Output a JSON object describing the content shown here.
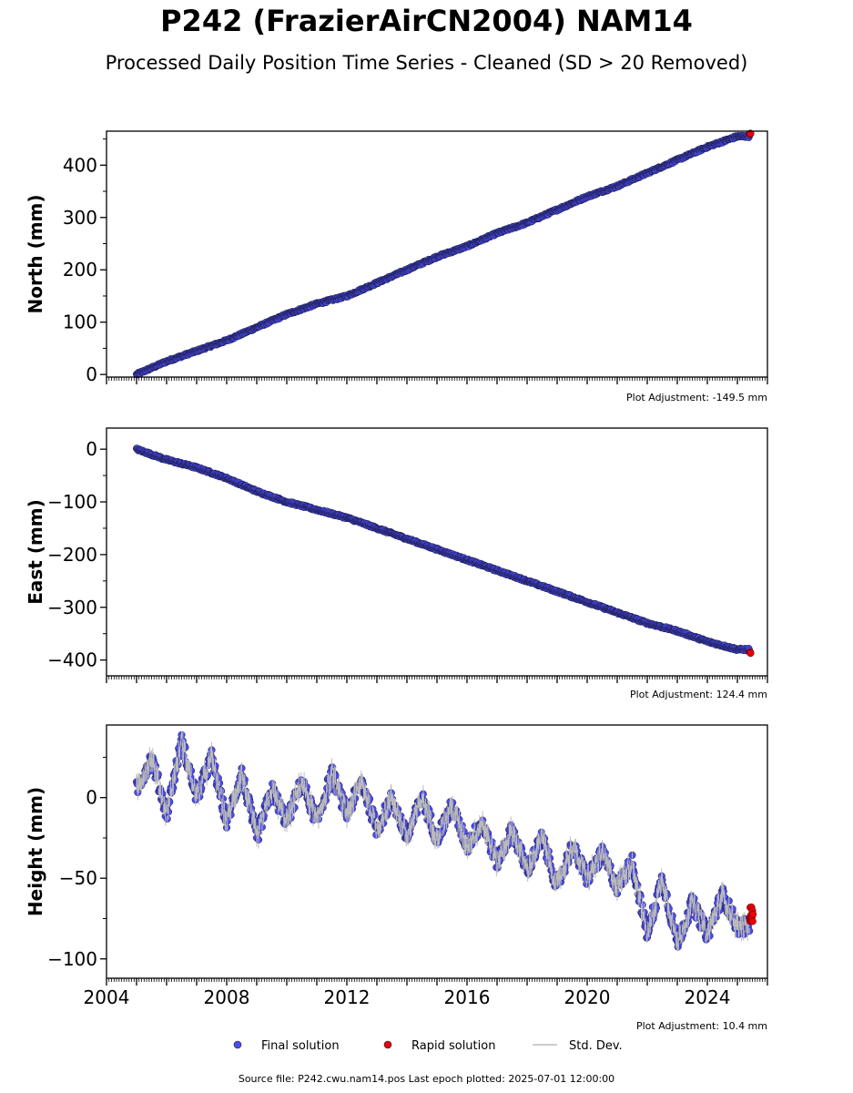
{
  "title": "P242 (FrazierAirCN2004) NAM14",
  "subtitle": "Processed Daily Position Time Series - Cleaned (SD > 20 Removed)",
  "legend": {
    "final": "Final solution",
    "rapid": "Rapid solution",
    "sd": "Std. Dev."
  },
  "source": "Source file: P242.cwu.nam14.pos  Last epoch plotted: 2025-07-01 12:00:00",
  "colors": {
    "final": "#4b4bef",
    "rapid": "#e8000b",
    "sd": "#bbbbbb"
  },
  "chart_data": [
    {
      "type": "scatter",
      "ylabel": "North (mm)",
      "adjustment": "Plot Adjustment: -149.5 mm",
      "xlim": [
        2004.0,
        2026.0
      ],
      "ylim": [
        -5,
        465
      ],
      "yticks": [
        0,
        100,
        200,
        300,
        400
      ],
      "ytick_labels": [
        "0",
        "100",
        "200",
        "300",
        "400"
      ],
      "series": [
        {
          "x": [
            2005.0,
            2006.0,
            2007.0,
            2008.0,
            2009.0,
            2010.0,
            2011.0,
            2012.0,
            2013.0,
            2014.0,
            2015.0,
            2016.0,
            2017.0,
            2018.0,
            2019.0,
            2020.0,
            2021.0,
            2022.0,
            2023.0,
            2024.0,
            2025.0
          ],
          "y": [
            0,
            25,
            45,
            65,
            90,
            115,
            135,
            150,
            175,
            200,
            225,
            245,
            270,
            290,
            315,
            340,
            360,
            385,
            410,
            435,
            455
          ]
        },
        {
          "x": [
            2025.45
          ],
          "y": [
            460
          ]
        }
      ]
    },
    {
      "type": "scatter",
      "ylabel": "East (mm)",
      "adjustment": "Plot Adjustment: 124.4 mm",
      "xlim": [
        2004.0,
        2026.0
      ],
      "ylim": [
        -430,
        40
      ],
      "yticks": [
        0,
        -100,
        -200,
        -300,
        -400
      ],
      "ytick_labels": [
        "0",
        "−100",
        "−200",
        "−300",
        "−400"
      ],
      "series": [
        {
          "x": [
            2005.0,
            2006.0,
            2007.0,
            2008.0,
            2009.0,
            2010.0,
            2011.0,
            2012.0,
            2013.0,
            2014.0,
            2015.0,
            2016.0,
            2017.0,
            2018.0,
            2019.0,
            2020.0,
            2021.0,
            2022.0,
            2023.0,
            2024.0,
            2025.0
          ],
          "y": [
            0,
            -20,
            -35,
            -55,
            -80,
            -100,
            -115,
            -130,
            -150,
            -170,
            -190,
            -210,
            -230,
            -250,
            -270,
            -290,
            -310,
            -330,
            -345,
            -365,
            -380
          ]
        },
        {
          "x": [
            2025.45
          ],
          "y": [
            -386
          ]
        }
      ]
    },
    {
      "type": "scatter",
      "ylabel": "Height (mm)",
      "adjustment": "Plot Adjustment: 10.4 mm",
      "xlim": [
        2004.0,
        2026.0
      ],
      "ylim": [
        -112,
        45
      ],
      "yticks": [
        0,
        -50,
        -100
      ],
      "ytick_labels": [
        "0",
        "−50",
        "−100"
      ],
      "xticks": [
        2004,
        2008,
        2012,
        2016,
        2020,
        2024
      ],
      "xtick_labels": [
        "2004",
        "2008",
        "2012",
        "2016",
        "2020",
        "2024"
      ],
      "series": [
        {
          "x": [
            2005.0,
            2005.5,
            2006.0,
            2006.5,
            2007.0,
            2007.5,
            2008.0,
            2008.5,
            2009.0,
            2009.5,
            2010.0,
            2010.5,
            2011.0,
            2011.5,
            2012.0,
            2012.5,
            2013.0,
            2013.5,
            2014.0,
            2014.5,
            2015.0,
            2015.5,
            2016.0,
            2016.5,
            2017.0,
            2017.5,
            2018.0,
            2018.5,
            2019.0,
            2019.5,
            2020.0,
            2020.5,
            2021.0,
            2021.5,
            2022.0,
            2022.5,
            2023.0,
            2023.5,
            2024.0,
            2024.5,
            2025.0
          ],
          "y": [
            5,
            25,
            -10,
            35,
            0,
            25,
            -15,
            15,
            -25,
            5,
            -15,
            10,
            -15,
            15,
            -10,
            10,
            -20,
            0,
            -25,
            0,
            -25,
            -5,
            -30,
            -15,
            -40,
            -20,
            -45,
            -25,
            -55,
            -30,
            -50,
            -35,
            -55,
            -40,
            -85,
            -50,
            -90,
            -65,
            -85,
            -60,
            -80
          ]
        },
        {
          "x": [
            2025.45
          ],
          "y": [
            -72
          ]
        }
      ]
    }
  ]
}
